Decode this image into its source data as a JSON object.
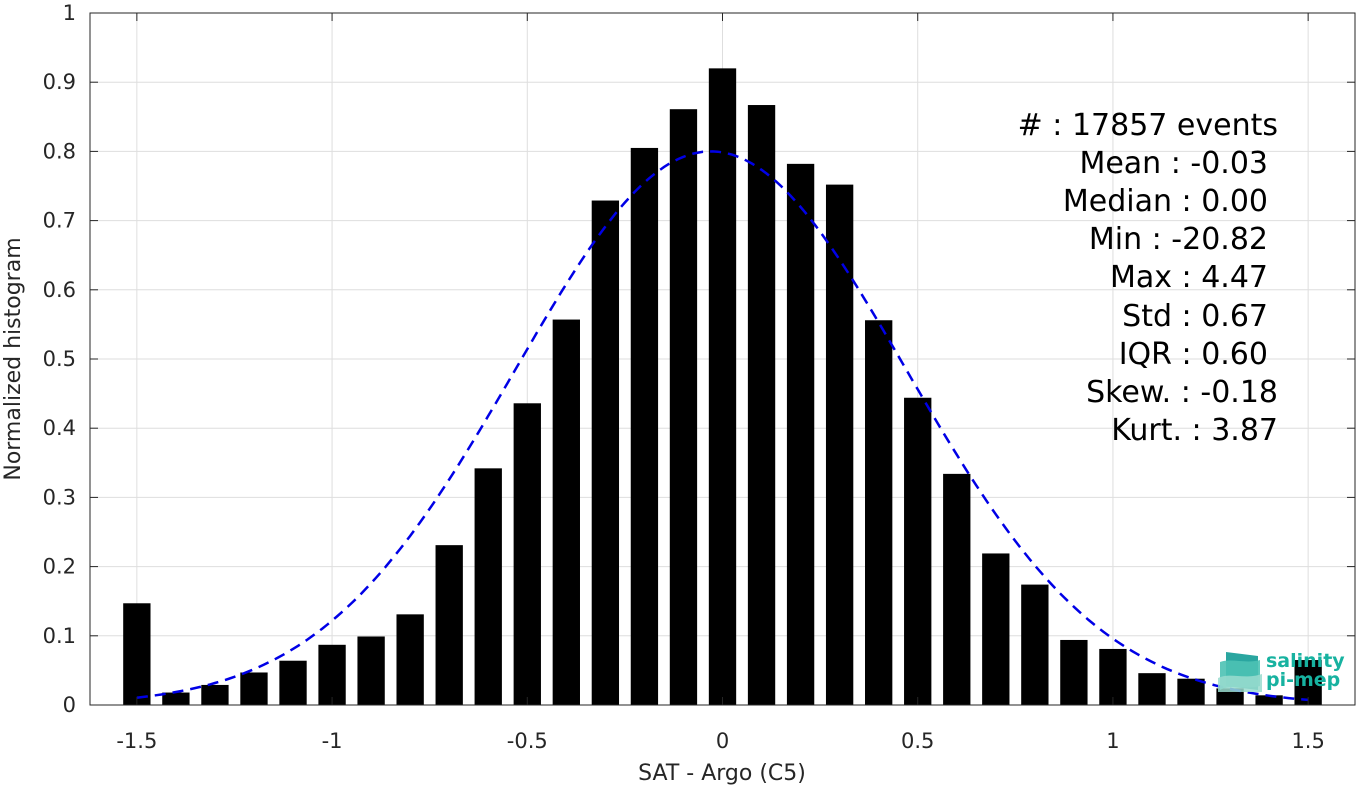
{
  "chart_data": {
    "type": "bar",
    "xlabel": "SAT - Argo (C5)",
    "ylabel": "Normalized histogram",
    "xlim": [
      -1.62,
      1.62
    ],
    "ylim": [
      0,
      1
    ],
    "xticks": [
      -1.5,
      -1,
      -0.5,
      0,
      0.5,
      1,
      1.5
    ],
    "xtick_labels": [
      "-1.5",
      "-1",
      "-0.5",
      "0",
      "0.5",
      "1",
      "1.5"
    ],
    "yticks": [
      0,
      0.1,
      0.2,
      0.3,
      0.4,
      0.5,
      0.6,
      0.7,
      0.8,
      0.9,
      1
    ],
    "ytick_labels": [
      "0",
      "0.1",
      "0.2",
      "0.3",
      "0.4",
      "0.5",
      "0.6",
      "0.7",
      "0.8",
      "0.9",
      "1"
    ],
    "grid": true,
    "bar_color": "#000000",
    "bar_width": 0.07,
    "bins": [
      -1.5,
      -1.4,
      -1.3,
      -1.2,
      -1.1,
      -1.0,
      -0.9,
      -0.8,
      -0.7,
      -0.6,
      -0.5,
      -0.4,
      -0.3,
      -0.2,
      -0.1,
      0.0,
      0.1,
      0.2,
      0.3,
      0.4,
      0.5,
      0.6,
      0.7,
      0.8,
      0.9,
      1.0,
      1.1,
      1.2,
      1.3,
      1.4,
      1.5
    ],
    "values": [
      0.147,
      0.018,
      0.029,
      0.047,
      0.064,
      0.087,
      0.099,
      0.131,
      0.231,
      0.342,
      0.436,
      0.557,
      0.729,
      0.805,
      0.861,
      0.92,
      0.867,
      0.782,
      0.752,
      0.556,
      0.444,
      0.334,
      0.219,
      0.174,
      0.094,
      0.081,
      0.046,
      0.038,
      0.024,
      0.014,
      0.065
    ],
    "fit_curve": {
      "style": "dashed",
      "color": "#0000e6",
      "mean": -0.03,
      "std": 0.5,
      "peak": 0.8,
      "x_range": [
        -1.5,
        1.5
      ]
    }
  },
  "stats": [
    "#  : 17857 events",
    "Mean : -0.03",
    "Median : 0.00",
    "Min : -20.82",
    "Max : 4.47",
    "Std : 0.67",
    "IQR : 0.60",
    "Skew. : -0.18",
    "Kurt. : 3.87"
  ],
  "logo": {
    "line1": "salinity",
    "line2": "pi-mep",
    "color": "#17b2a0"
  }
}
